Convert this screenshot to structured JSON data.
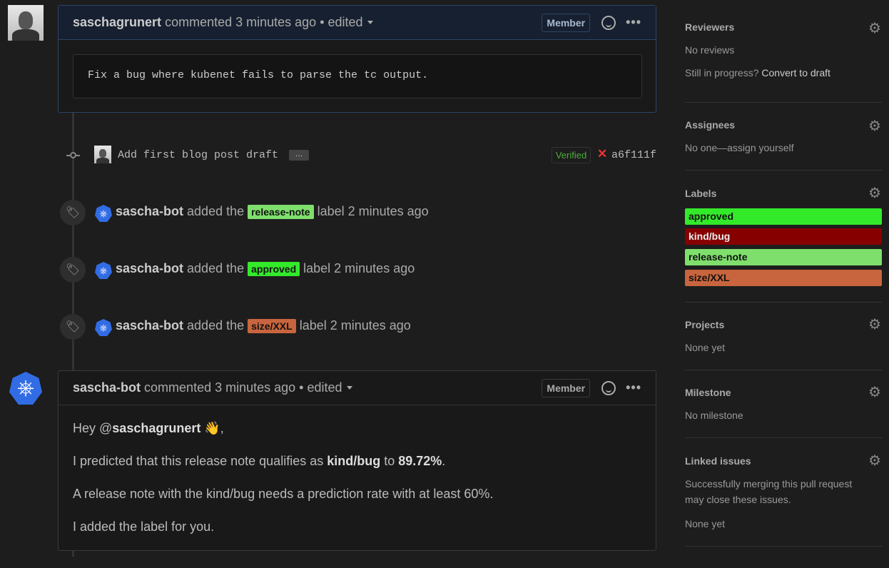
{
  "comment1": {
    "author": "saschagrunert",
    "meta": "commented 3 minutes ago • edited",
    "badge": "Member",
    "code": "Fix a bug where kubenet fails to parse the tc output."
  },
  "commit": {
    "message": "Add first blog post draft",
    "ellipsis": "…",
    "verified": "Verified",
    "status_icon": "✕",
    "sha": "a6f111f"
  },
  "events": [
    {
      "actor": "sascha-bot",
      "action": "added the",
      "label": "release-note",
      "color": "#7fdf6c",
      "suffix": "label 2 minutes ago"
    },
    {
      "actor": "sascha-bot",
      "action": "added the",
      "label": "approved",
      "color": "#33ea2a",
      "suffix": "label 2 minutes ago"
    },
    {
      "actor": "sascha-bot",
      "action": "added the",
      "label": "size/XXL",
      "color": "#c8653e",
      "suffix": "label 2 minutes ago"
    }
  ],
  "comment2": {
    "author": "sascha-bot",
    "meta": "commented 3 minutes ago • edited",
    "badge": "Member",
    "line1_pre": "Hey @",
    "line1_mention": "saschagrunert",
    "line1_emoji": "👋",
    "line1_post": ",",
    "line2_pre": "I predicted that this release note qualifies as ",
    "line2_kind": "kind/bug",
    "line2_mid": " to ",
    "line2_pct": "89.72%",
    "line2_post": ".",
    "line3": "A release note with the kind/bug needs a prediction rate with at least 60%.",
    "line4": "I added the label for you."
  },
  "sidebar": {
    "reviewers": {
      "title": "Reviewers",
      "text": "No reviews",
      "progress_q": "Still in progress?",
      "convert": "Convert to draft"
    },
    "assignees": {
      "title": "Assignees",
      "text": "No one—assign yourself"
    },
    "labels": {
      "title": "Labels",
      "items": [
        {
          "name": "approved",
          "color": "#33ea2a",
          "text": "#111"
        },
        {
          "name": "kind/bug",
          "color": "#870000",
          "text": "#eee"
        },
        {
          "name": "release-note",
          "color": "#7fdf6c",
          "text": "#111"
        },
        {
          "name": "size/XXL",
          "color": "#c8653e",
          "text": "#111"
        }
      ]
    },
    "projects": {
      "title": "Projects",
      "text": "None yet"
    },
    "milestone": {
      "title": "Milestone",
      "text": "No milestone"
    },
    "linked": {
      "title": "Linked issues",
      "text1": "Successfully merging this pull request",
      "text2": "may close these issues.",
      "text3": "None yet"
    }
  }
}
